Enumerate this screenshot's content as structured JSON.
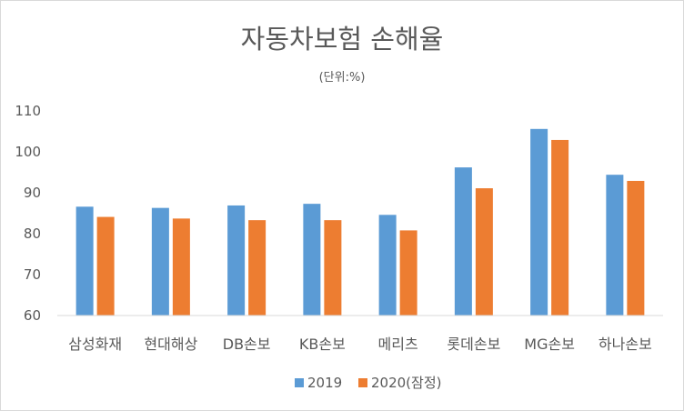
{
  "chart_data": {
    "type": "bar",
    "title": "자동차보험 손해율",
    "subtitle": "(단위:%)",
    "categories": [
      "삼성화재",
      "현대해상",
      "DB손보",
      "KB손보",
      "메리츠",
      "롯데손보",
      "MG손보",
      "하나손보"
    ],
    "series": [
      {
        "name": "2019",
        "color": "#5b9bd5",
        "values": [
          86.6,
          86.3,
          86.9,
          87.3,
          84.6,
          96.2,
          105.6,
          94.4
        ]
      },
      {
        "name": "2020(잠정)",
        "color": "#ed7d31",
        "values": [
          84.1,
          83.7,
          83.3,
          83.3,
          80.8,
          91.1,
          102.9,
          92.9
        ]
      }
    ],
    "ylim": [
      60,
      110
    ],
    "yticks": [
      60,
      70,
      80,
      90,
      100,
      110
    ],
    "grid": false,
    "legend_position": "bottom"
  }
}
